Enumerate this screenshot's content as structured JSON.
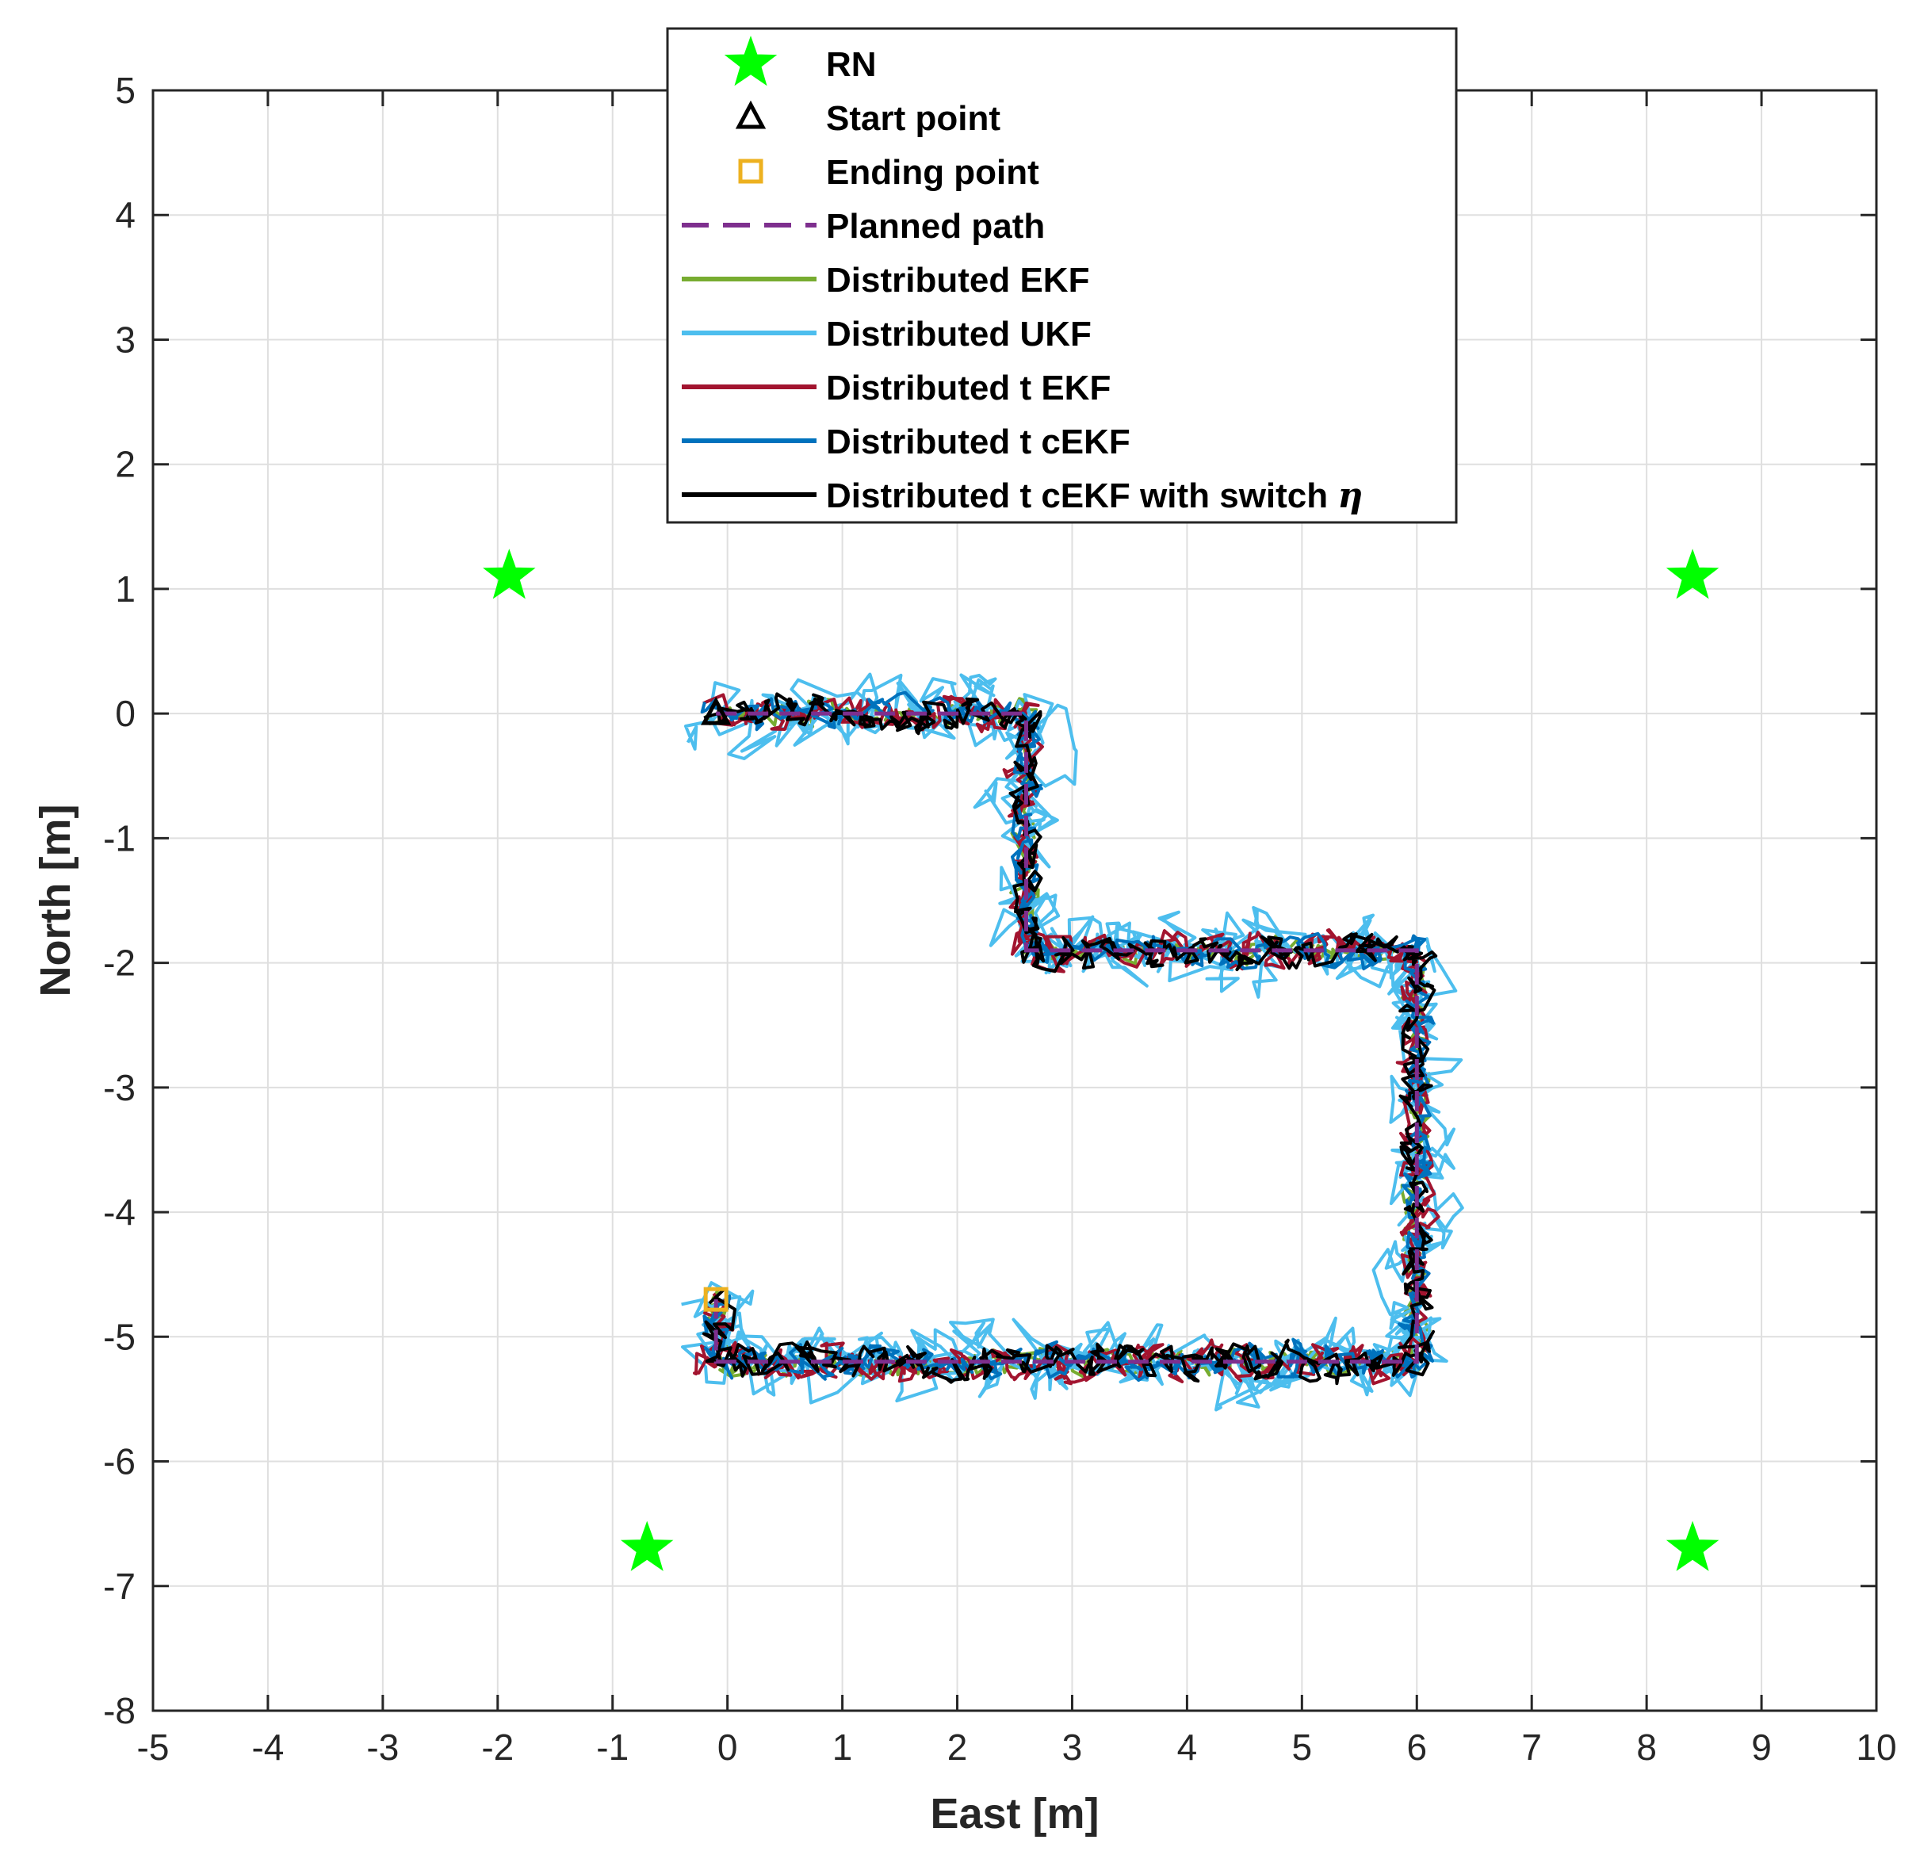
{
  "chart_data": {
    "type": "line",
    "title": "",
    "xlabel": "East [m]",
    "ylabel": "North [m]",
    "xlim": [
      -5,
      10
    ],
    "ylim": [
      -8,
      5
    ],
    "grid": true,
    "x_ticks": [
      -5,
      -4,
      -3,
      -2,
      -1,
      0,
      1,
      2,
      3,
      4,
      5,
      6,
      7,
      8,
      9,
      10
    ],
    "y_ticks": [
      -8,
      -7,
      -6,
      -5,
      -4,
      -3,
      -2,
      -1,
      0,
      1,
      2,
      3,
      4,
      5
    ],
    "x_tick_labels": [
      "-5",
      "-4",
      "-3",
      "-2",
      "-1",
      "0",
      "1",
      "2",
      "3",
      "4",
      "5",
      "6",
      "7",
      "8",
      "9",
      "10"
    ],
    "y_tick_labels": [
      "-8",
      "-7",
      "-6",
      "-5",
      "-4",
      "-3",
      "-2",
      "-1",
      "0",
      "1",
      "2",
      "3",
      "4",
      "5"
    ],
    "legend_position": "top-center",
    "legend": [
      {
        "label": "RN",
        "marker": "star",
        "color": "#00ff00"
      },
      {
        "label": "Start point",
        "marker": "triangle",
        "color": "#000000"
      },
      {
        "label": "Ending point",
        "marker": "square",
        "color": "#edb120"
      },
      {
        "label": "Planned path",
        "line": "dashed",
        "color": "#7e2f8e"
      },
      {
        "label": "Distributed EKF",
        "line": "solid",
        "color": "#77ac30"
      },
      {
        "label": "Distributed UKF",
        "line": "solid",
        "color": "#4dbeee"
      },
      {
        "label": "Distributed t EKF",
        "line": "solid",
        "color": "#a2142f"
      },
      {
        "label": "Distributed t cEKF",
        "line": "solid",
        "color": "#0072bd"
      },
      {
        "label": "Distributed t cEKF with switch ",
        "symbol": "η",
        "line": "solid",
        "color": "#000000"
      }
    ],
    "reference_nodes": {
      "x": [
        -1.9,
        8.4,
        -0.7,
        8.4
      ],
      "y": [
        1.1,
        1.1,
        -6.7,
        -6.7
      ]
    },
    "start_point": {
      "x": -0.1,
      "y": 0.0
    },
    "ending_point": {
      "x": -0.1,
      "y": -4.7
    },
    "planned_path": {
      "x": [
        -0.1,
        2.6,
        2.6,
        6.0,
        6.0,
        -0.1,
        -0.1
      ],
      "y": [
        0.0,
        0.0,
        -1.9,
        -1.9,
        -5.2,
        -5.2,
        -4.7
      ]
    },
    "series": [
      {
        "name": "Distributed EKF",
        "color": "#77ac30",
        "amplitude": 0.12,
        "seed": 11
      },
      {
        "name": "Distributed UKF",
        "color": "#4dbeee",
        "amplitude": 0.35,
        "seed": 23
      },
      {
        "name": "Distributed t EKF",
        "color": "#a2142f",
        "amplitude": 0.16,
        "seed": 37
      },
      {
        "name": "Distributed t cEKF",
        "color": "#0072bd",
        "amplitude": 0.14,
        "seed": 53
      },
      {
        "name": "Distributed t cEKF with switch η",
        "color": "#000000",
        "amplitude": 0.15,
        "seed": 71
      }
    ]
  }
}
